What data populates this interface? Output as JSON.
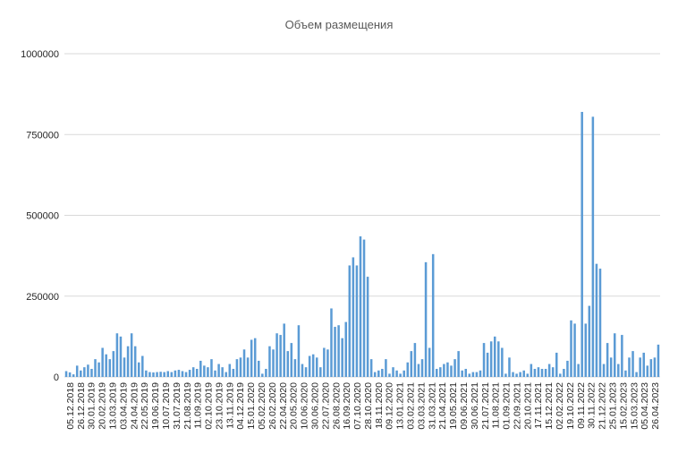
{
  "chart_data": {
    "type": "bar",
    "title": "Объем размещения",
    "xlabel": "",
    "ylabel": "",
    "ylim": [
      0,
      1000000
    ],
    "yticks": [
      0,
      250000,
      500000,
      750000,
      1000000
    ],
    "ytick_labels": [
      "0",
      "250000",
      "500000",
      "750000",
      "1000000"
    ],
    "grid": true,
    "legend": "none",
    "bar_color": "#5B9BD5",
    "grid_color": "#D9D9D9",
    "xtick_labels": [
      "05.12.2018",
      "26.12.2018",
      "30.01.2019",
      "20.02.2019",
      "13.03.2019",
      "03.04.2019",
      "24.04.2019",
      "22.05.2019",
      "19.06.2019",
      "10.07.2019",
      "31.07.2019",
      "21.08.2019",
      "11.09.2019",
      "02.10.2019",
      "23.10.2019",
      "13.11.2019",
      "04.12.2019",
      "15.01.2020",
      "05.02.2020",
      "26.02.2020",
      "22.04.2020",
      "20.05.2020",
      "10.06.2020",
      "30.06.2020",
      "22.07.2020",
      "26.08.2020",
      "16.09.2020",
      "07.10.2020",
      "28.10.2020",
      "18.11.2020",
      "09.12.2020",
      "13.01.2021",
      "03.02.2021",
      "03.03.2021",
      "31.03.2021",
      "21.04.2021",
      "19.05.2021",
      "09.06.2021",
      "30.06.2021",
      "21.07.2021",
      "11.08.2021",
      "01.09.2021",
      "22.09.2021",
      "20.10.2021",
      "17.11.2021",
      "15.12.2021",
      "02.02.2022",
      "19.10.2022",
      "09.11.2022",
      "30.11.2022",
      "21.12.2022",
      "25.01.2023",
      "15.02.2023",
      "15.03.2023",
      "05.04.2023",
      "26.04.2023"
    ],
    "values": [
      18000,
      14000,
      8000,
      35000,
      20000,
      30000,
      38000,
      25000,
      55000,
      45000,
      90000,
      70000,
      55000,
      80000,
      135000,
      125000,
      60000,
      95000,
      135000,
      95000,
      45000,
      65000,
      20000,
      15000,
      14000,
      15000,
      16000,
      15000,
      18000,
      15000,
      20000,
      22000,
      18000,
      15000,
      22000,
      30000,
      25000,
      50000,
      35000,
      30000,
      55000,
      20000,
      40000,
      30000,
      15000,
      40000,
      25000,
      55000,
      60000,
      85000,
      60000,
      115000,
      120000,
      50000,
      10000,
      25000,
      95000,
      85000,
      135000,
      130000,
      165000,
      80000,
      105000,
      55000,
      160000,
      40000,
      30000,
      65000,
      70000,
      60000,
      30000,
      90000,
      85000,
      212000,
      155000,
      160000,
      120000,
      170000,
      345000,
      370000,
      345000,
      435000,
      425000,
      310000,
      55000,
      15000,
      20000,
      25000,
      55000,
      10000,
      30000,
      20000,
      10000,
      20000,
      45000,
      80000,
      105000,
      40000,
      55000,
      355000,
      90000,
      380000,
      25000,
      30000,
      40000,
      45000,
      35000,
      55000,
      80000,
      20000,
      25000,
      10000,
      15000,
      15000,
      20000,
      105000,
      75000,
      110000,
      125000,
      110000,
      90000,
      10000,
      60000,
      15000,
      10000,
      15000,
      20000,
      10000,
      40000,
      25000,
      30000,
      25000,
      25000,
      40000,
      30000,
      75000,
      10000,
      25000,
      50000,
      175000,
      165000,
      40000,
      820000,
      165000,
      220000,
      805000,
      350000,
      335000,
      40000,
      105000,
      60000,
      135000,
      40000,
      130000,
      20000,
      60000,
      80000,
      15000,
      60000,
      75000,
      35000,
      55000,
      60000,
      100000
    ]
  }
}
